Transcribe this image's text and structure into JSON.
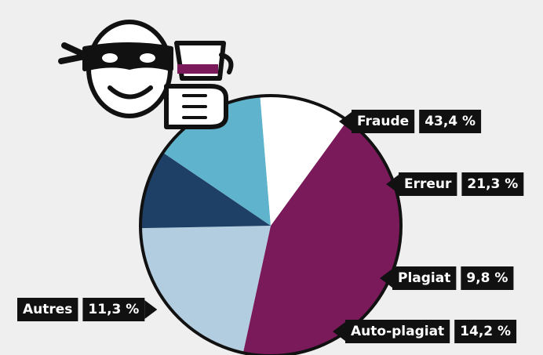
{
  "chart_data": {
    "type": "pie",
    "categories": [
      "Fraude",
      "Erreur",
      "Plagiat",
      "Auto-plagiat",
      "Autres"
    ],
    "values": [
      43.4,
      21.3,
      9.8,
      14.2,
      11.3
    ],
    "value_labels": [
      "43,4 %",
      "21,3 %",
      "9,8 %",
      "14,2 %",
      "11,3 %"
    ],
    "colors": [
      "#7b1a5a",
      "#b3cde0",
      "#1f4066",
      "#5fb3cc",
      "#ffffff"
    ]
  }
}
